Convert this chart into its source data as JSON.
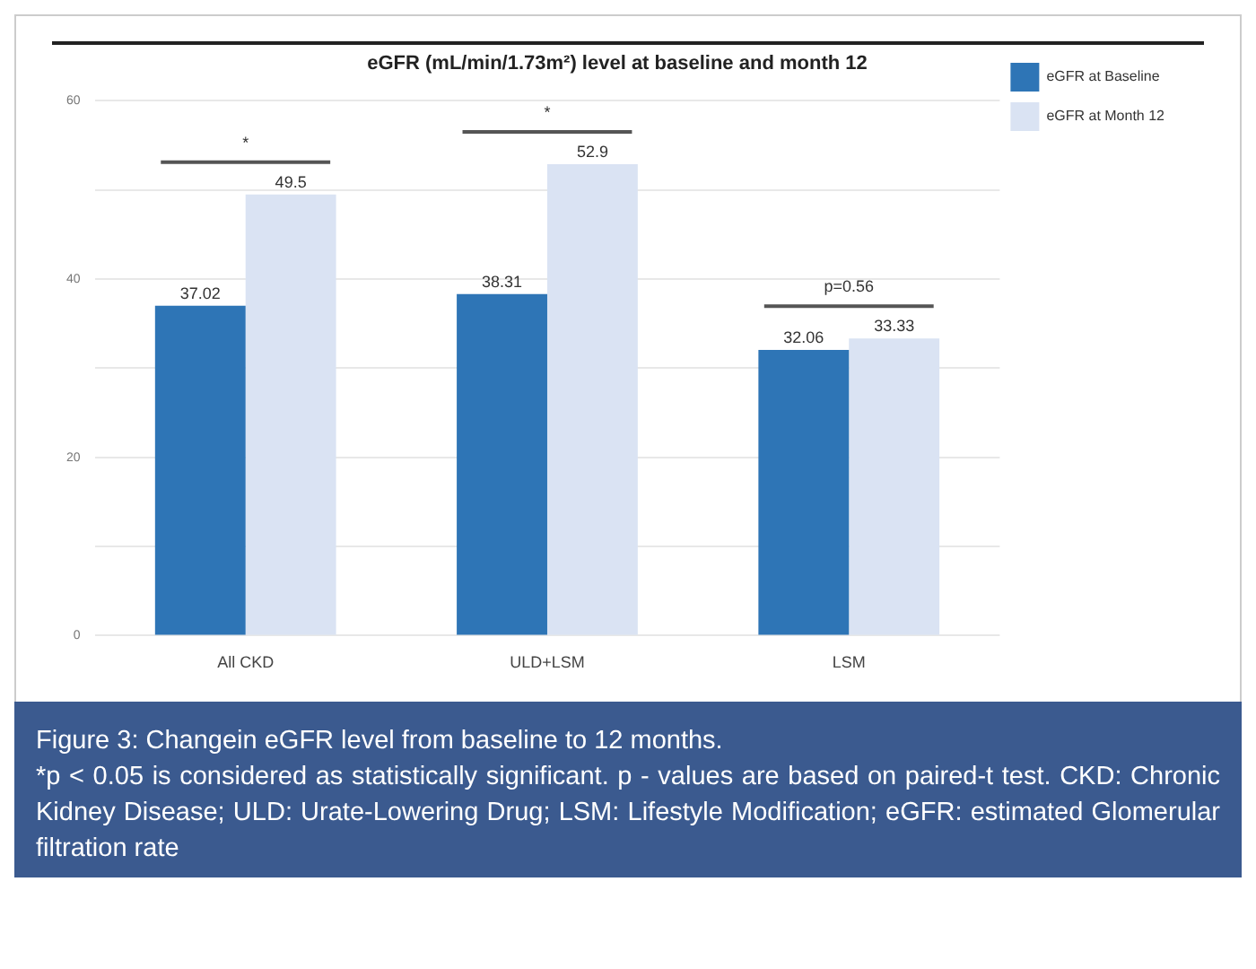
{
  "chart_data": {
    "type": "bar",
    "title": "eGFR (mL/min/1.73m²) level at baseline and month 12",
    "categories": [
      "All CKD",
      "ULD+LSM",
      "LSM"
    ],
    "series": [
      {
        "name": "eGFR at Baseline",
        "color": "#2e75b6",
        "values": [
          37.02,
          38.31,
          32.06
        ]
      },
      {
        "name": "eGFR at Month 12",
        "color": "#dae3f3",
        "values": [
          49.5,
          52.9,
          33.33
        ]
      }
    ],
    "ylim": [
      0,
      60
    ],
    "yticks": [
      0,
      {
        "value": 10,
        "label": null
      },
      20,
      {
        "value": 30,
        "label": null
      },
      40,
      {
        "value": 50,
        "label": null
      },
      60
    ],
    "grid": "y",
    "legend": "right",
    "data_labels": true,
    "annotations": [
      "*",
      "*",
      "p=0.56",
      "Figure 3: Changein eGFR level from baseline to 12 months.",
      "*p < 0.05 is considered as statistically significant. p - values are based on paired-t test. CKD: Chronic Kidney Disease; ULD: Urate-Lowering Drug; LSM: Lifestyle Modification; eGFR: estimated Glomerular filtration rate"
    ]
  }
}
